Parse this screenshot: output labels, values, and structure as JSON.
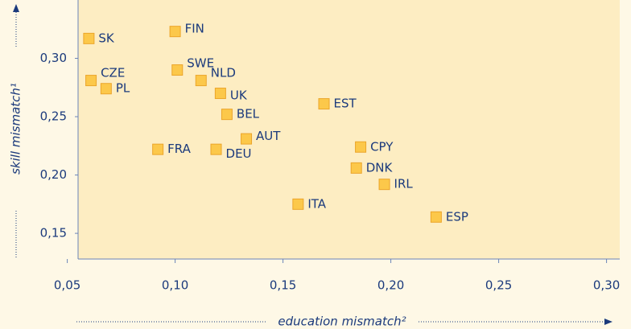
{
  "chart_data": {
    "type": "scatter",
    "x_label": "education mismatch²",
    "y_label": "skill mismatch¹",
    "labels": [
      "SK",
      "FIN",
      "CZE",
      "SWE",
      "NLD",
      "PL",
      "UK",
      "EST",
      "BEL",
      "AUT",
      "FRA",
      "DEU",
      "CPY",
      "DNK",
      "IRL",
      "ITA",
      "ESP"
    ],
    "x": [
      0.06,
      0.1,
      0.061,
      0.101,
      0.112,
      0.068,
      0.121,
      0.169,
      0.124,
      0.133,
      0.092,
      0.119,
      0.186,
      0.184,
      0.197,
      0.157,
      0.221
    ],
    "y": [
      0.317,
      0.323,
      0.281,
      0.29,
      0.281,
      0.274,
      0.27,
      0.261,
      0.252,
      0.231,
      0.222,
      0.222,
      0.224,
      0.206,
      0.192,
      0.175,
      0.164
    ],
    "color": "#fcc84a",
    "xlim": [
      0.055,
      0.305
    ],
    "ylim": [
      0.128,
      0.35
    ],
    "xticks": [
      {
        "value": 0.05,
        "label": "0,05"
      },
      {
        "value": 0.1,
        "label": "0,10"
      },
      {
        "value": 0.15,
        "label": "0,15"
      },
      {
        "value": 0.2,
        "label": "0,20"
      },
      {
        "value": 0.25,
        "label": "0,25"
      },
      {
        "value": 0.3,
        "label": "0,30"
      }
    ],
    "yticks": [
      {
        "value": 0.15,
        "label": "0,15"
      },
      {
        "value": 0.2,
        "label": "0,20"
      },
      {
        "value": 0.25,
        "label": "0,25"
      },
      {
        "value": 0.3,
        "label": "0,30"
      }
    ]
  }
}
